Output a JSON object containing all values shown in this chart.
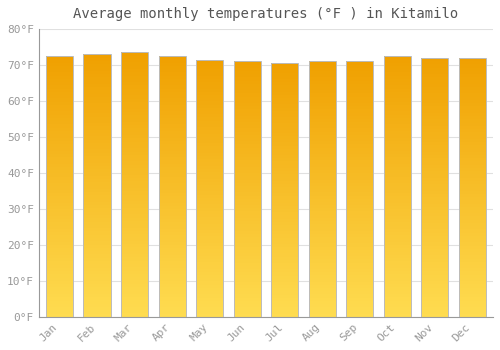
{
  "months": [
    "Jan",
    "Feb",
    "Mar",
    "Apr",
    "May",
    "Jun",
    "Jul",
    "Aug",
    "Sep",
    "Oct",
    "Nov",
    "Dec"
  ],
  "values": [
    72.5,
    73.0,
    73.5,
    72.5,
    71.5,
    71.0,
    70.5,
    71.0,
    71.0,
    72.5,
    72.0,
    72.0
  ],
  "bar_color_top": "#F5A800",
  "bar_color_bottom": "#FFD966",
  "bar_edge_color": "#BBBBBB",
  "background_color": "#FFFFFF",
  "title": "Average monthly temperatures (°F ) in Kitamilo",
  "ylim": [
    0,
    80
  ],
  "yticks": [
    0,
    10,
    20,
    30,
    40,
    50,
    60,
    70,
    80
  ],
  "ytick_labels": [
    "0°F",
    "10°F",
    "20°F",
    "30°F",
    "40°F",
    "50°F",
    "60°F",
    "70°F",
    "80°F"
  ],
  "title_fontsize": 10,
  "tick_fontsize": 8,
  "grid_color": "#E0E0E0",
  "bar_width": 0.72,
  "spine_color": "#999999",
  "tick_color": "#999999"
}
